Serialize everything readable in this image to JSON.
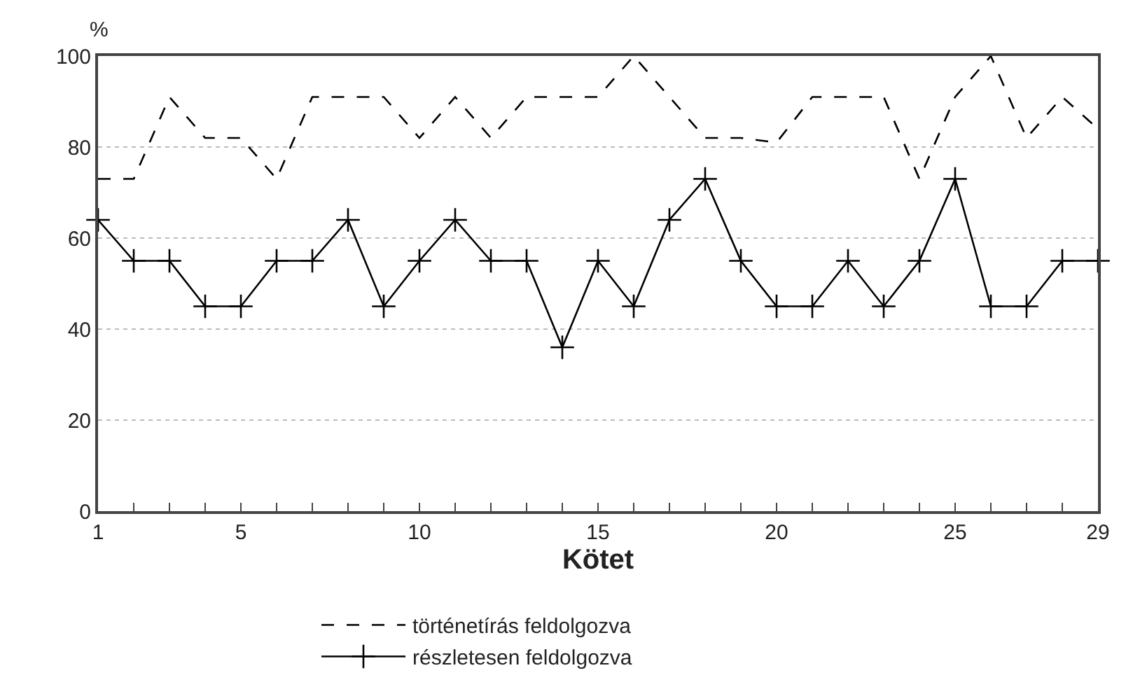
{
  "chart_data": {
    "type": "line",
    "xlabel": "Kötet",
    "ylabel": "%",
    "x": [
      1,
      2,
      3,
      4,
      5,
      6,
      7,
      8,
      9,
      10,
      11,
      12,
      13,
      14,
      15,
      16,
      17,
      18,
      19,
      20,
      21,
      22,
      23,
      24,
      25,
      26,
      27,
      28,
      29
    ],
    "series": [
      {
        "name": "történetírás feldolgozva",
        "color": "#000000",
        "line_style": "dashed",
        "marker": "none",
        "values": [
          73,
          73,
          91,
          82,
          82,
          73,
          91,
          91,
          91,
          82,
          91,
          82,
          91,
          91,
          91,
          100,
          91,
          82,
          82,
          81,
          91,
          91,
          91,
          73,
          91,
          100,
          82,
          91,
          84
        ]
      },
      {
        "name": "részletesen feldolgozva",
        "color": "#000000",
        "line_style": "solid",
        "marker": "cross",
        "values": [
          64,
          55,
          55,
          45,
          45,
          55,
          55,
          64,
          45,
          55,
          64,
          55,
          55,
          36,
          55,
          45,
          64,
          73,
          55,
          45,
          45,
          55,
          45,
          55,
          73,
          45,
          45,
          55,
          55
        ]
      }
    ],
    "xlim": [
      1,
      29
    ],
    "xticks": [
      1,
      {
        "value": 2,
        "label": null
      },
      {
        "value": 3,
        "label": null
      },
      {
        "value": 4,
        "label": null
      },
      5,
      {
        "value": 6,
        "label": null
      },
      {
        "value": 7,
        "label": null
      },
      {
        "value": 8,
        "label": null
      },
      {
        "value": 9,
        "label": null
      },
      10,
      {
        "value": 11,
        "label": null
      },
      {
        "value": 12,
        "label": null
      },
      {
        "value": 13,
        "label": null
      },
      {
        "value": 14,
        "label": null
      },
      15,
      {
        "value": 16,
        "label": null
      },
      {
        "value": 17,
        "label": null
      },
      {
        "value": 18,
        "label": null
      },
      {
        "value": 19,
        "label": null
      },
      20,
      {
        "value": 21,
        "label": null
      },
      {
        "value": 22,
        "label": null
      },
      {
        "value": 23,
        "label": null
      },
      {
        "value": 24,
        "label": null
      },
      25,
      {
        "value": 26,
        "label": null
      },
      {
        "value": 27,
        "label": null
      },
      {
        "value": 28,
        "label": null
      },
      29
    ],
    "ylim": [
      0,
      100
    ],
    "yticks": [
      0,
      20,
      40,
      60,
      80,
      100
    ],
    "grid": "y",
    "legend": "bottom"
  }
}
